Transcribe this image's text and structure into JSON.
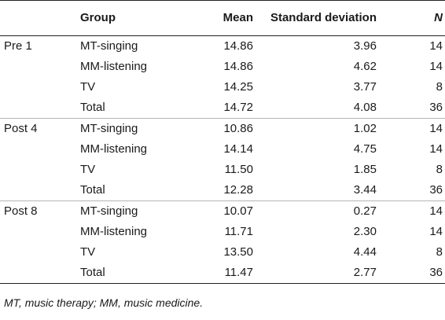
{
  "headers": {
    "condition": "",
    "group": "Group",
    "mean": "Mean",
    "sd": "Standard deviation",
    "n": "N"
  },
  "rows": [
    {
      "condition": "Pre 1",
      "group": "MT-singing",
      "mean": "14.86",
      "sd": "3.96",
      "n": "14"
    },
    {
      "condition": "",
      "group": "MM-listening",
      "mean": "14.86",
      "sd": "4.62",
      "n": "14"
    },
    {
      "condition": "",
      "group": "TV",
      "mean": "14.25",
      "sd": "3.77",
      "n": "8"
    },
    {
      "condition": "",
      "group": "Total",
      "mean": "14.72",
      "sd": "4.08",
      "n": "36"
    },
    {
      "condition": "Post 4",
      "group": "MT-singing",
      "mean": "10.86",
      "sd": "1.02",
      "n": "14"
    },
    {
      "condition": "",
      "group": "MM-listening",
      "mean": "14.14",
      "sd": "4.75",
      "n": "14"
    },
    {
      "condition": "",
      "group": "TV",
      "mean": "11.50",
      "sd": "1.85",
      "n": "8"
    },
    {
      "condition": "",
      "group": "Total",
      "mean": "12.28",
      "sd": "3.44",
      "n": "36"
    },
    {
      "condition": "Post 8",
      "group": "MT-singing",
      "mean": "10.07",
      "sd": "0.27",
      "n": "14"
    },
    {
      "condition": "",
      "group": "MM-listening",
      "mean": "11.71",
      "sd": "2.30",
      "n": "14"
    },
    {
      "condition": "",
      "group": "TV",
      "mean": "13.50",
      "sd": "4.44",
      "n": "8"
    },
    {
      "condition": "",
      "group": "Total",
      "mean": "11.47",
      "sd": "2.77",
      "n": "36"
    }
  ],
  "note": "MT, music therapy; MM, music medicine."
}
